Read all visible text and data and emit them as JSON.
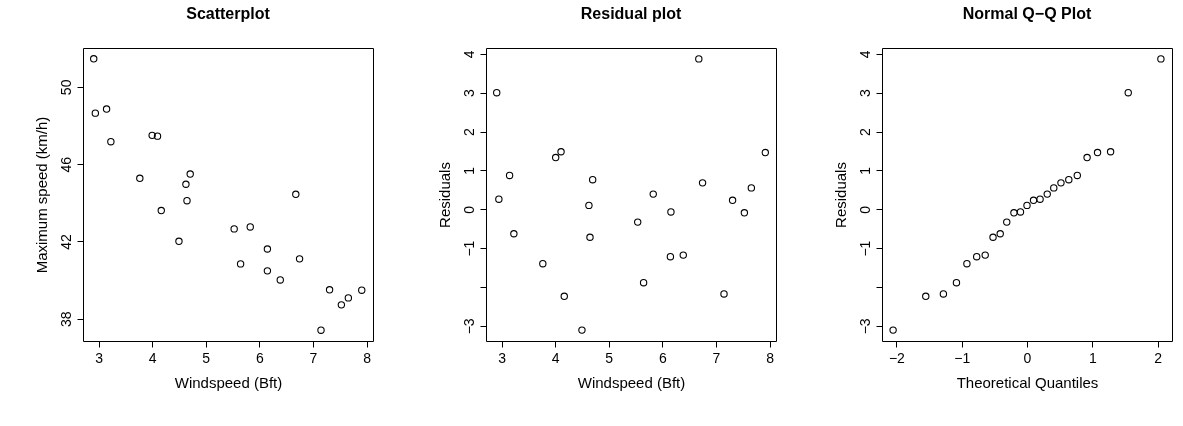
{
  "chart_data": [
    {
      "type": "scatter",
      "title": "Scatterplot",
      "xlabel": "Windspeed (Bft)",
      "ylabel": "Maximum speed (km/h)",
      "marker": "circle",
      "grid": false,
      "x": [
        2.91,
        2.94,
        3.15,
        3.23,
        3.77,
        4.0,
        4.1,
        4.17,
        4.5,
        4.63,
        4.65,
        4.71,
        5.53,
        5.65,
        5.83,
        6.15,
        6.15,
        6.39,
        6.68,
        6.75,
        7.15,
        7.31,
        7.53,
        7.66,
        7.91
      ],
      "series": [
        {
          "color": "#000000",
          "values": [
            51.45,
            48.64,
            48.85,
            47.16,
            45.27,
            47.49,
            47.45,
            43.6,
            42.01,
            44.96,
            44.11,
            45.49,
            42.65,
            40.84,
            42.75,
            41.61,
            40.48,
            40.01,
            44.44,
            41.1,
            37.41,
            39.5,
            38.72,
            39.08,
            39.48
          ]
        }
      ],
      "xlim": [
        2.71,
        8.12
      ],
      "ylim": [
        36.85,
        52.01
      ],
      "xticks": [
        3,
        4,
        5,
        6,
        7,
        8
      ],
      "yticks": [
        38,
        42,
        46,
        50
      ]
    },
    {
      "type": "scatter",
      "title": "Residual plot",
      "xlabel": "Windspeed (Bft)",
      "ylabel": "Residuals",
      "marker": "circle",
      "grid": false,
      "x": [
        2.91,
        2.95,
        3.15,
        3.23,
        3.77,
        4.01,
        4.11,
        4.17,
        4.5,
        4.63,
        4.65,
        4.7,
        5.54,
        5.65,
        5.83,
        6.16,
        6.15,
        6.39,
        6.68,
        6.75,
        7.15,
        7.31,
        7.53,
        7.66,
        7.92
      ],
      "series": [
        {
          "color": "#000000",
          "values": [
            3.0,
            0.26,
            0.87,
            -0.63,
            -1.4,
            1.33,
            1.48,
            -2.24,
            -3.11,
            0.1,
            -0.72,
            0.76,
            -0.33,
            -1.89,
            0.39,
            -0.07,
            -1.22,
            -1.18,
            3.87,
            0.68,
            -2.18,
            0.23,
            -0.09,
            0.55,
            1.46
          ]
        }
      ],
      "xlim": [
        2.71,
        8.12
      ],
      "ylim": [
        -3.39,
        4.15
      ],
      "xticks": [
        3,
        4,
        5,
        6,
        7,
        8
      ],
      "yticks": [
        {
          "value": -3,
          "label": "−3"
        },
        {
          "value": -2,
          "label": null
        },
        {
          "value": -1,
          "label": "−1"
        },
        0,
        1,
        2,
        3,
        4
      ]
    },
    {
      "type": "scatter",
      "title": "Normal Q−Q Plot",
      "xlabel": "Theoretical Quantiles",
      "ylabel": "Residuals",
      "marker": "circle",
      "grid": false,
      "x": [
        -2.05,
        -1.55,
        -1.28,
        -1.08,
        -0.92,
        -0.77,
        -0.64,
        -0.52,
        -0.41,
        -0.31,
        -0.2,
        -0.1,
        0,
        0.1,
        0.2,
        0.31,
        0.41,
        0.52,
        0.64,
        0.77,
        0.92,
        1.08,
        1.28,
        1.55,
        2.05
      ],
      "series": [
        {
          "color": "#000000",
          "values": [
            -3.11,
            -2.24,
            -2.18,
            -1.89,
            -1.4,
            -1.22,
            -1.18,
            -0.72,
            -0.63,
            -0.33,
            -0.09,
            -0.07,
            0.1,
            0.23,
            0.26,
            0.39,
            0.55,
            0.68,
            0.76,
            0.87,
            1.33,
            1.46,
            1.48,
            3.0,
            3.87
          ]
        }
      ],
      "xlim": [
        -2.22,
        2.22
      ],
      "ylim": [
        -3.39,
        4.15
      ],
      "xticks": [
        {
          "value": -2,
          "label": "−2"
        },
        {
          "value": -1,
          "label": "−1"
        },
        0,
        1,
        2
      ],
      "yticks": [
        {
          "value": -3,
          "label": "−3"
        },
        {
          "value": -2,
          "label": null
        },
        {
          "value": -1,
          "label": "−1"
        },
        0,
        1,
        2,
        3,
        4
      ]
    }
  ]
}
